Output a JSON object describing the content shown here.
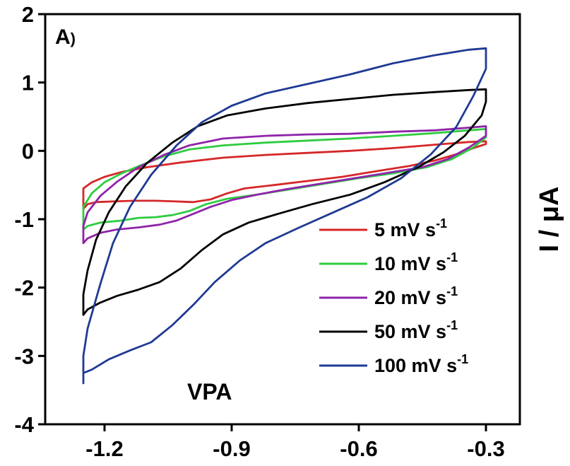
{
  "chart_data": {
    "type": "line",
    "panel_label": "A",
    "panel_label_suffix": ")",
    "annotation": "VPA",
    "ylabel": "I / μA",
    "xlabel": "",
    "xlim": [
      -1.34,
      -0.22
    ],
    "ylim": [
      -4,
      2
    ],
    "x_ticks": [
      -1.2,
      -0.9,
      -0.6,
      -0.3
    ],
    "x_tick_labels": [
      "-1.2",
      "-0.9",
      "-0.6",
      "-0.3"
    ],
    "y_ticks": [
      2,
      1,
      0,
      -1,
      -2,
      -3,
      -4
    ],
    "y_tick_labels": [
      "2",
      "1",
      "0",
      "-1",
      "-2",
      "-3",
      "-4"
    ],
    "grid": false,
    "legend_position": "bottom-right",
    "series": [
      {
        "name": "5 mV s",
        "name_sup": "-1",
        "color": "#d62728",
        "points": [
          [
            -1.25,
            -0.85
          ],
          [
            -1.24,
            -0.78
          ],
          [
            -1.22,
            -0.75
          ],
          [
            -1.18,
            -0.74
          ],
          [
            -1.13,
            -0.73
          ],
          [
            -1.08,
            -0.73
          ],
          [
            -1.03,
            -0.74
          ],
          [
            -0.99,
            -0.75
          ],
          [
            -0.95,
            -0.71
          ],
          [
            -0.91,
            -0.62
          ],
          [
            -0.87,
            -0.55
          ],
          [
            -0.8,
            -0.5
          ],
          [
            -0.72,
            -0.44
          ],
          [
            -0.64,
            -0.38
          ],
          [
            -0.56,
            -0.3
          ],
          [
            -0.48,
            -0.22
          ],
          [
            -0.42,
            -0.14
          ],
          [
            -0.37,
            -0.05
          ],
          [
            -0.33,
            0.04
          ],
          [
            -0.3,
            0.1
          ],
          [
            -0.3,
            0.14
          ],
          [
            -0.34,
            0.13
          ],
          [
            -0.42,
            0.09
          ],
          [
            -0.52,
            0.04
          ],
          [
            -0.62,
            0.0
          ],
          [
            -0.72,
            -0.03
          ],
          [
            -0.82,
            -0.06
          ],
          [
            -0.92,
            -0.1
          ],
          [
            -1.02,
            -0.17
          ],
          [
            -1.1,
            -0.24
          ],
          [
            -1.16,
            -0.31
          ],
          [
            -1.2,
            -0.38
          ],
          [
            -1.23,
            -0.46
          ],
          [
            -1.25,
            -0.55
          ],
          [
            -1.25,
            -0.85
          ]
        ]
      },
      {
        "name": "10 mV s",
        "name_sup": "-1",
        "color": "#2ecc40",
        "points": [
          [
            -1.25,
            -1.15
          ],
          [
            -1.24,
            -1.1
          ],
          [
            -1.21,
            -1.05
          ],
          [
            -1.16,
            -1.02
          ],
          [
            -1.12,
            -0.98
          ],
          [
            -1.08,
            -0.97
          ],
          [
            -1.04,
            -0.94
          ],
          [
            -1.0,
            -0.88
          ],
          [
            -0.96,
            -0.78
          ],
          [
            -0.91,
            -0.7
          ],
          [
            -0.84,
            -0.64
          ],
          [
            -0.76,
            -0.56
          ],
          [
            -0.68,
            -0.48
          ],
          [
            -0.6,
            -0.4
          ],
          [
            -0.52,
            -0.33
          ],
          [
            -0.44,
            -0.24
          ],
          [
            -0.38,
            -0.12
          ],
          [
            -0.33,
            0.05
          ],
          [
            -0.3,
            0.2
          ],
          [
            -0.3,
            0.32
          ],
          [
            -0.34,
            0.3
          ],
          [
            -0.42,
            0.26
          ],
          [
            -0.52,
            0.22
          ],
          [
            -0.62,
            0.18
          ],
          [
            -0.72,
            0.15
          ],
          [
            -0.82,
            0.12
          ],
          [
            -0.92,
            0.08
          ],
          [
            -1.0,
            0.02
          ],
          [
            -1.06,
            -0.08
          ],
          [
            -1.11,
            -0.2
          ],
          [
            -1.16,
            -0.33
          ],
          [
            -1.2,
            -0.46
          ],
          [
            -1.23,
            -0.62
          ],
          [
            -1.25,
            -0.82
          ],
          [
            -1.25,
            -1.15
          ]
        ]
      },
      {
        "name": "20 mV s",
        "name_sup": "-1",
        "color": "#8e24aa",
        "points": [
          [
            -1.25,
            -1.35
          ],
          [
            -1.24,
            -1.28
          ],
          [
            -1.21,
            -1.2
          ],
          [
            -1.17,
            -1.15
          ],
          [
            -1.12,
            -1.12
          ],
          [
            -1.07,
            -1.08
          ],
          [
            -1.03,
            -1.02
          ],
          [
            -0.99,
            -0.92
          ],
          [
            -0.95,
            -0.82
          ],
          [
            -0.9,
            -0.72
          ],
          [
            -0.84,
            -0.64
          ],
          [
            -0.77,
            -0.56
          ],
          [
            -0.69,
            -0.48
          ],
          [
            -0.61,
            -0.4
          ],
          [
            -0.53,
            -0.32
          ],
          [
            -0.45,
            -0.24
          ],
          [
            -0.39,
            -0.12
          ],
          [
            -0.34,
            0.05
          ],
          [
            -0.3,
            0.22
          ],
          [
            -0.3,
            0.36
          ],
          [
            -0.34,
            0.34
          ],
          [
            -0.42,
            0.3
          ],
          [
            -0.52,
            0.28
          ],
          [
            -0.62,
            0.25
          ],
          [
            -0.72,
            0.24
          ],
          [
            -0.82,
            0.22
          ],
          [
            -0.92,
            0.18
          ],
          [
            -1.0,
            0.08
          ],
          [
            -1.06,
            -0.06
          ],
          [
            -1.12,
            -0.24
          ],
          [
            -1.17,
            -0.45
          ],
          [
            -1.21,
            -0.66
          ],
          [
            -1.24,
            -0.9
          ],
          [
            -1.25,
            -1.1
          ],
          [
            -1.25,
            -1.35
          ]
        ]
      },
      {
        "name": "50 mV s",
        "name_sup": "-1",
        "color": "#000000",
        "points": [
          [
            -1.25,
            -2.4
          ],
          [
            -1.24,
            -2.32
          ],
          [
            -1.21,
            -2.22
          ],
          [
            -1.17,
            -2.12
          ],
          [
            -1.12,
            -2.03
          ],
          [
            -1.07,
            -1.92
          ],
          [
            -1.02,
            -1.72
          ],
          [
            -0.97,
            -1.45
          ],
          [
            -0.92,
            -1.22
          ],
          [
            -0.86,
            -1.05
          ],
          [
            -0.79,
            -0.92
          ],
          [
            -0.71,
            -0.78
          ],
          [
            -0.62,
            -0.64
          ],
          [
            -0.54,
            -0.46
          ],
          [
            -0.46,
            -0.24
          ],
          [
            -0.4,
            -0.02
          ],
          [
            -0.35,
            0.22
          ],
          [
            -0.31,
            0.52
          ],
          [
            -0.3,
            0.72
          ],
          [
            -0.3,
            0.9
          ],
          [
            -0.34,
            0.89
          ],
          [
            -0.42,
            0.86
          ],
          [
            -0.52,
            0.82
          ],
          [
            -0.62,
            0.76
          ],
          [
            -0.72,
            0.7
          ],
          [
            -0.82,
            0.62
          ],
          [
            -0.91,
            0.52
          ],
          [
            -0.98,
            0.36
          ],
          [
            -1.04,
            0.12
          ],
          [
            -1.1,
            -0.18
          ],
          [
            -1.15,
            -0.52
          ],
          [
            -1.19,
            -0.9
          ],
          [
            -1.22,
            -1.3
          ],
          [
            -1.24,
            -1.75
          ],
          [
            -1.25,
            -2.1
          ],
          [
            -1.25,
            -2.4
          ]
        ]
      },
      {
        "name": "100 mV  s",
        "name_sup": "-1",
        "color": "#1f3a93",
        "points": [
          [
            -1.25,
            -3.4
          ],
          [
            -1.25,
            -3.25
          ],
          [
            -1.23,
            -3.2
          ],
          [
            -1.19,
            -3.05
          ],
          [
            -1.14,
            -2.92
          ],
          [
            -1.09,
            -2.8
          ],
          [
            -1.04,
            -2.55
          ],
          [
            -0.99,
            -2.25
          ],
          [
            -0.94,
            -1.92
          ],
          [
            -0.88,
            -1.6
          ],
          [
            -0.82,
            -1.35
          ],
          [
            -0.74,
            -1.12
          ],
          [
            -0.66,
            -0.9
          ],
          [
            -0.58,
            -0.68
          ],
          [
            -0.5,
            -0.4
          ],
          [
            -0.43,
            -0.05
          ],
          [
            -0.37,
            0.35
          ],
          [
            -0.33,
            0.8
          ],
          [
            -0.3,
            1.2
          ],
          [
            -0.3,
            1.5
          ],
          [
            -0.34,
            1.48
          ],
          [
            -0.42,
            1.4
          ],
          [
            -0.52,
            1.28
          ],
          [
            -0.62,
            1.12
          ],
          [
            -0.72,
            0.98
          ],
          [
            -0.82,
            0.84
          ],
          [
            -0.9,
            0.66
          ],
          [
            -0.97,
            0.42
          ],
          [
            -1.03,
            0.08
          ],
          [
            -1.09,
            -0.35
          ],
          [
            -1.14,
            -0.82
          ],
          [
            -1.18,
            -1.35
          ],
          [
            -1.21,
            -1.95
          ],
          [
            -1.24,
            -2.6
          ],
          [
            -1.25,
            -3.0
          ],
          [
            -1.25,
            -3.4
          ]
        ]
      }
    ]
  }
}
